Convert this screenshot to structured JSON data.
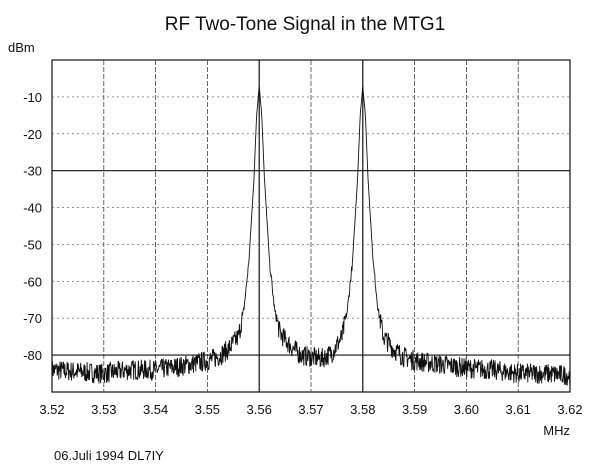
{
  "chart_data": {
    "type": "line",
    "title": "RF Two-Tone Signal in the MTG1",
    "ylabel": "dBm",
    "xlabel": "MHz",
    "xlim": [
      3.52,
      3.62
    ],
    "ylim": [
      -90,
      0
    ],
    "x_ticks": [
      "3.52",
      "3.53",
      "3.54",
      "3.55",
      "3.56",
      "3.57",
      "3.58",
      "3.59",
      "3.60",
      "3.61",
      "3.62"
    ],
    "y_ticks": [
      {
        "value": -10,
        "label": "-10"
      },
      {
        "value": -20,
        "label": "-20"
      },
      {
        "value": -30,
        "label": "-30"
      },
      {
        "value": -40,
        "label": "-40"
      },
      {
        "value": -50,
        "label": "-50"
      },
      {
        "value": -60,
        "label": "-60"
      },
      {
        "value": -70,
        "label": "-70"
      },
      {
        "value": -80,
        "label": "-80"
      }
    ],
    "grid": true,
    "series": [
      {
        "points": [
          [
            3.52,
            -84.0
          ],
          [
            3.525,
            -84.5
          ],
          [
            3.53,
            -85.0
          ],
          [
            3.535,
            -84.0
          ],
          [
            3.54,
            -84.0
          ],
          [
            3.545,
            -83.0
          ],
          [
            3.55,
            -81.5
          ],
          [
            3.552,
            -80.5
          ],
          [
            3.554,
            -78.5
          ],
          [
            3.556,
            -75.0
          ],
          [
            3.557,
            -68.0
          ],
          [
            3.558,
            -55.0
          ],
          [
            3.559,
            -32.0
          ],
          [
            3.5595,
            -15.0
          ],
          [
            3.56,
            -7.0
          ],
          [
            3.5605,
            -15.0
          ],
          [
            3.561,
            -32.0
          ],
          [
            3.562,
            -55.0
          ],
          [
            3.563,
            -68.0
          ],
          [
            3.564,
            -74.0
          ],
          [
            3.566,
            -77.5
          ],
          [
            3.568,
            -80.0
          ],
          [
            3.57,
            -80.5
          ],
          [
            3.572,
            -81.0
          ],
          [
            3.574,
            -79.5
          ],
          [
            3.576,
            -75.0
          ],
          [
            3.577,
            -68.0
          ],
          [
            3.578,
            -55.0
          ],
          [
            3.579,
            -32.0
          ],
          [
            3.5795,
            -15.0
          ],
          [
            3.58,
            -7.0
          ],
          [
            3.5805,
            -15.0
          ],
          [
            3.581,
            -32.0
          ],
          [
            3.582,
            -55.0
          ],
          [
            3.583,
            -68.0
          ],
          [
            3.584,
            -75.0
          ],
          [
            3.586,
            -78.5
          ],
          [
            3.588,
            -80.5
          ],
          [
            3.59,
            -81.5
          ],
          [
            3.595,
            -82.5
          ],
          [
            3.6,
            -83.5
          ],
          [
            3.605,
            -84.0
          ],
          [
            3.61,
            -85.0
          ],
          [
            3.615,
            -85.0
          ],
          [
            3.62,
            -85.5
          ]
        ]
      }
    ]
  },
  "footer": {
    "text": "06.Juli 1994  DL7IY"
  }
}
